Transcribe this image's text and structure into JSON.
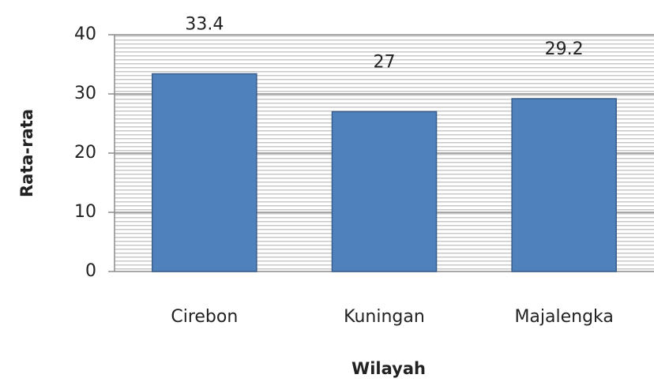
{
  "chart_data": {
    "type": "bar",
    "categories": [
      "Cirebon",
      "Kuningan",
      "Majalengka"
    ],
    "values": [
      33.4,
      27,
      29.2
    ],
    "color": "#4f81bd",
    "xlabel": "Wilayah",
    "ylabel": "Rata-rata",
    "ylim": [
      0,
      40
    ],
    "yticks": [
      0,
      10,
      20,
      30,
      40
    ],
    "grid": true
  }
}
